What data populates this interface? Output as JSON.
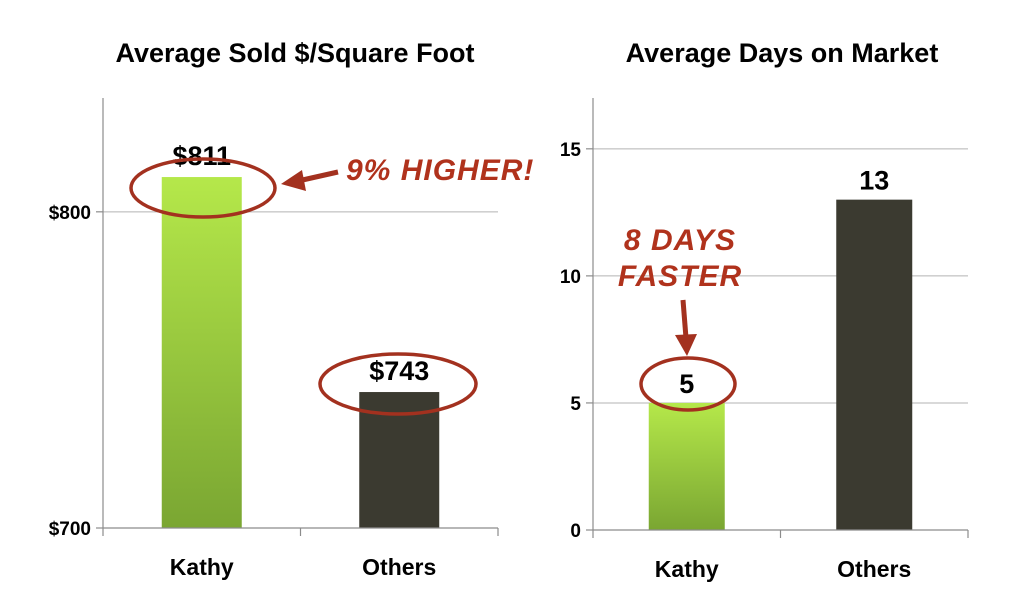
{
  "chart_data": [
    {
      "type": "bar",
      "title": "Average Sold $/Square Foot",
      "categories": [
        "Kathy",
        "Others"
      ],
      "values": [
        811,
        743
      ],
      "data_labels": [
        "$811",
        "$743"
      ],
      "yticks": [
        700,
        800
      ],
      "ytick_labels": [
        "$700",
        "$800"
      ],
      "ylim": [
        700,
        836
      ],
      "grid": true,
      "colors": [
        "#8bc34a",
        "#3b3a30"
      ],
      "annotation": "9% HIGHER!",
      "xlabel": "",
      "ylabel": ""
    },
    {
      "type": "bar",
      "title": "Average Days on Market",
      "categories": [
        "Kathy",
        "Others"
      ],
      "values": [
        5,
        13
      ],
      "data_labels": [
        "5",
        "13"
      ],
      "yticks": [
        0,
        5,
        10,
        15
      ],
      "ytick_labels": [
        "0",
        "5",
        "10",
        "15"
      ],
      "ylim": [
        0,
        17
      ],
      "grid": true,
      "colors": [
        "#8bc34a",
        "#3b3a30"
      ],
      "annotation_lines": [
        "8 DAYS",
        "FASTER"
      ],
      "xlabel": "",
      "ylabel": ""
    }
  ]
}
